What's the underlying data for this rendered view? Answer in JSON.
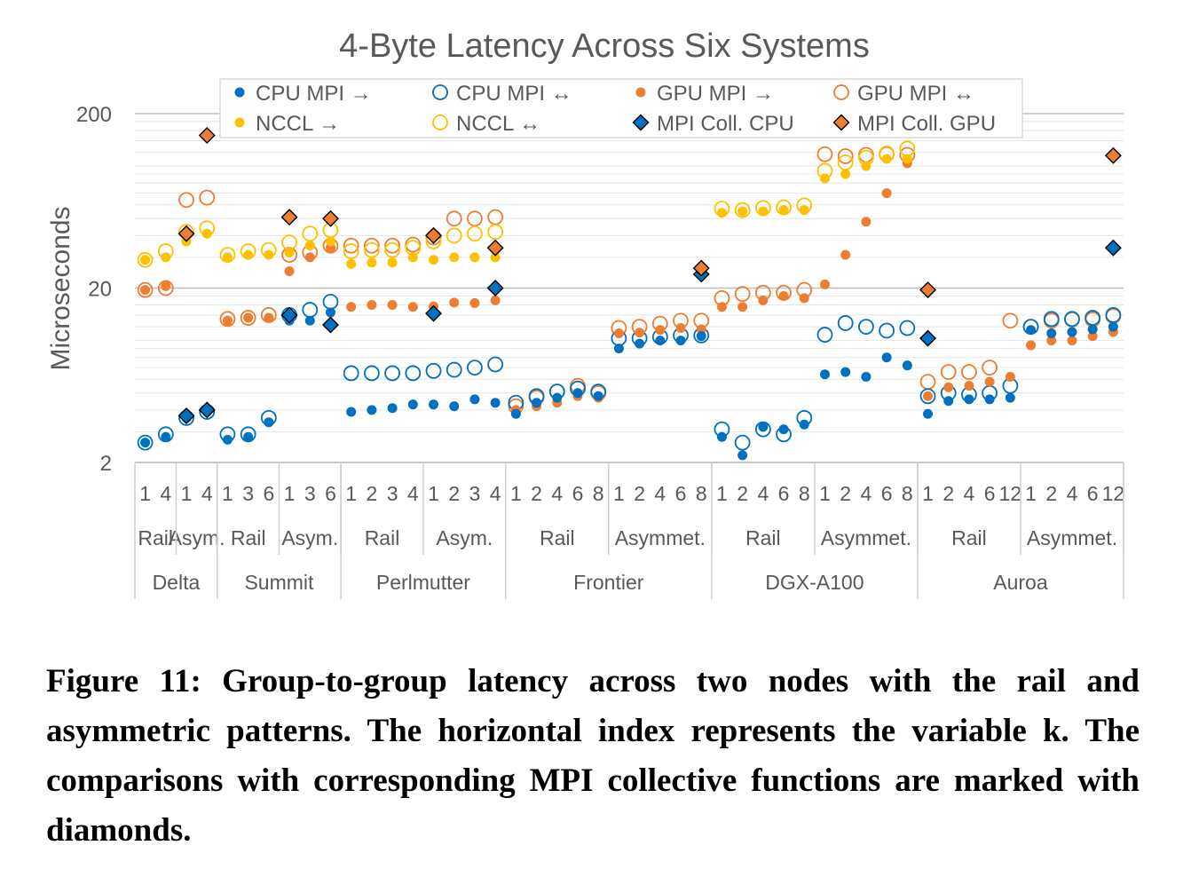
{
  "colors": {
    "cpu": "#0070C0",
    "gpu": "#ED7D31",
    "nccl": "#FFC000",
    "axis_text": "#595959",
    "grid": "#D9D9D9",
    "diamond_cpu": "#0070C0",
    "diamond_gpu": "#ED7D31"
  },
  "chart_data": {
    "type": "scatter",
    "title": "4-Byte Latency Across Six Systems",
    "xlabel": "",
    "ylabel": "Microseconds",
    "y_scale": "log",
    "ylim": [
      2,
      200
    ],
    "yticks": [
      "2",
      "20",
      "200"
    ],
    "grid": true,
    "legend_position": "top",
    "legend": [
      {
        "label": "CPU MPI →",
        "marker": "filled-circle",
        "color": "#0070C0"
      },
      {
        "label": "CPU MPI ↔",
        "marker": "open-circle",
        "color": "#0070C0"
      },
      {
        "label": "GPU MPI →",
        "marker": "filled-circle",
        "color": "#ED7D31"
      },
      {
        "label": "GPU MPI ↔",
        "marker": "open-circle",
        "color": "#ED7D31"
      },
      {
        "label": "NCCL →",
        "marker": "filled-circle",
        "color": "#FFC000"
      },
      {
        "label": "NCCL ↔",
        "marker": "open-circle",
        "color": "#FFC000"
      },
      {
        "label": "MPI Coll. CPU",
        "marker": "diamond",
        "color": "#0070C0"
      },
      {
        "label": "MPI Coll. GPU",
        "marker": "diamond",
        "color": "#ED7D31"
      }
    ],
    "systems": [
      {
        "name": "Delta",
        "groups": [
          {
            "name": "Rail",
            "k": [
              "1",
              "4"
            ]
          },
          {
            "name": "Asym.",
            "k": [
              "1",
              "4"
            ]
          }
        ]
      },
      {
        "name": "Summit",
        "groups": [
          {
            "name": "Rail",
            "k": [
              "1",
              "3",
              "6"
            ]
          },
          {
            "name": "Asym.",
            "k": [
              "1",
              "3",
              "6"
            ]
          }
        ]
      },
      {
        "name": "Perlmutter",
        "groups": [
          {
            "name": "Rail",
            "k": [
              "1",
              "2",
              "3",
              "4"
            ]
          },
          {
            "name": "Asym.",
            "k": [
              "1",
              "2",
              "3",
              "4"
            ]
          }
        ]
      },
      {
        "name": "Frontier",
        "groups": [
          {
            "name": "Rail",
            "k": [
              "1",
              "2",
              "4",
              "6",
              "8"
            ]
          },
          {
            "name": "Asymmet.",
            "k": [
              "1",
              "2",
              "4",
              "6",
              "8"
            ]
          }
        ]
      },
      {
        "name": "DGX-A100",
        "groups": [
          {
            "name": "Rail",
            "k": [
              "1",
              "2",
              "4",
              "6",
              "8"
            ]
          },
          {
            "name": "Asymmet.",
            "k": [
              "1",
              "2",
              "4",
              "6",
              "8"
            ]
          }
        ]
      },
      {
        "name": "Auroa",
        "groups": [
          {
            "name": "Rail",
            "k": [
              "1",
              "2",
              "4",
              "6",
              "12"
            ]
          },
          {
            "name": "Asymmet.",
            "k": [
              "1",
              "2",
              "4",
              "6",
              "12"
            ]
          }
        ]
      }
    ],
    "series": [
      {
        "name": "CPU MPI →",
        "values": [
          2.6,
          2.8,
          3.6,
          3.9,
          2.7,
          2.8,
          3.4,
          13.0,
          13.0,
          14.5,
          3.9,
          4.0,
          4.1,
          4.3,
          4.3,
          4.2,
          4.6,
          4.4,
          3.8,
          4.4,
          4.7,
          5.0,
          4.8,
          9.0,
          9.6,
          10.0,
          10.0,
          10.6,
          2.8,
          2.2,
          3.2,
          3.1,
          3.3,
          6.4,
          6.6,
          6.2,
          8.0,
          7.2,
          3.8,
          4.5,
          4.6,
          4.6,
          4.7,
          11.5,
          11.0,
          11.2,
          11.6,
          12.0
        ]
      },
      {
        "name": "CPU MPI ↔",
        "values": [
          2.6,
          2.9,
          3.6,
          3.9,
          2.9,
          2.9,
          3.6,
          14.0,
          15.0,
          16.7,
          6.5,
          6.5,
          6.5,
          6.5,
          6.7,
          6.8,
          7.0,
          7.3,
          4.4,
          4.8,
          5.1,
          5.3,
          5.1,
          10.3,
          10.3,
          10.5,
          10.7,
          10.7,
          3.1,
          2.6,
          3.1,
          2.9,
          3.6,
          10.8,
          12.6,
          12.0,
          11.4,
          11.8,
          4.8,
          5.0,
          4.9,
          5.0,
          5.5,
          12.0,
          13.3,
          13.3,
          13.5,
          14.0
        ]
      },
      {
        "name": "GPU MPI →",
        "values": [
          19.5,
          20.5,
          null,
          null,
          13.0,
          13.5,
          13.5,
          25.0,
          30.0,
          34.0,
          15.6,
          16.0,
          16.0,
          15.6,
          15.7,
          16.5,
          16.4,
          17.0,
          4.0,
          4.2,
          4.4,
          4.8,
          4.7,
          11.0,
          11.1,
          11.5,
          11.8,
          11.6,
          15.6,
          15.6,
          17.0,
          18.0,
          17.5,
          21.0,
          31.0,
          48.0,
          70.0,
          104.0,
          4.8,
          5.4,
          5.5,
          5.8,
          6.2,
          9.4,
          10.0,
          10.0,
          10.6,
          11.2
        ]
      },
      {
        "name": "GPU MPI ↔",
        "values": [
          19.5,
          20.0,
          64.0,
          66.0,
          13.3,
          13.5,
          14.0,
          31.0,
          32.0,
          35.0,
          35.0,
          35.0,
          35.0,
          35.5,
          39.0,
          50.0,
          50.0,
          51.0,
          4.2,
          4.7,
          5.1,
          5.5,
          5.0,
          11.8,
          12.0,
          12.5,
          13.0,
          13.0,
          17.5,
          18.5,
          18.8,
          18.8,
          19.5,
          117.0,
          114.0,
          116.0,
          117.0,
          116.0,
          5.8,
          6.6,
          6.6,
          7.0,
          13.0,
          12.0,
          13.0,
          13.2,
          13.2,
          13.8
        ]
      },
      {
        "name": "NCCL →",
        "values": [
          29.0,
          30.0,
          37.0,
          41.0,
          30.0,
          31.0,
          31.0,
          32.0,
          35.0,
          37.0,
          27.5,
          28.0,
          28.0,
          30.0,
          29.0,
          30.0,
          30.0,
          30.0,
          null,
          null,
          null,
          null,
          null,
          null,
          null,
          null,
          null,
          null,
          54.0,
          55.0,
          55.0,
          56.0,
          56.0,
          85.0,
          90.0,
          100.0,
          110.0,
          110.0,
          null,
          null,
          null,
          null,
          null,
          null,
          null,
          null,
          null,
          null
        ]
      },
      {
        "name": "NCCL ↔",
        "values": [
          29.0,
          32.5,
          42.0,
          44.0,
          31.0,
          32.5,
          33.0,
          36.5,
          41.0,
          43.0,
          32.5,
          33.0,
          33.0,
          34.0,
          37.0,
          40.0,
          41.0,
          42.0,
          null,
          null,
          null,
          null,
          null,
          null,
          null,
          null,
          null,
          null,
          57.0,
          56.0,
          57.5,
          58.0,
          59.5,
          94.0,
          105.0,
          112.0,
          118.0,
          126.0,
          null,
          null,
          null,
          null,
          null,
          null,
          null,
          null,
          null,
          null
        ]
      },
      {
        "name": "MPI Coll. CPU",
        "values": [
          null,
          null,
          3.7,
          4.0,
          null,
          null,
          null,
          14.0,
          null,
          12.3,
          null,
          null,
          null,
          null,
          14.3,
          null,
          null,
          20.0,
          null,
          null,
          null,
          null,
          null,
          null,
          null,
          null,
          null,
          24.0,
          null,
          null,
          null,
          null,
          null,
          null,
          null,
          null,
          null,
          null,
          10.3,
          null,
          null,
          null,
          null,
          null,
          null,
          null,
          null,
          34.0
        ]
      },
      {
        "name": "MPI Coll. GPU",
        "values": [
          null,
          null,
          41.0,
          150.0,
          null,
          null,
          null,
          51.0,
          null,
          50.0,
          null,
          null,
          null,
          null,
          40.0,
          null,
          null,
          34.0,
          null,
          null,
          null,
          null,
          null,
          null,
          null,
          null,
          null,
          26.0,
          null,
          null,
          null,
          null,
          null,
          null,
          null,
          null,
          null,
          null,
          19.5,
          null,
          null,
          null,
          null,
          null,
          null,
          null,
          null,
          115.0
        ]
      }
    ]
  },
  "caption": "Figure 11: Group-to-group latency across two nodes with the rail and asymmetric patterns. The horizontal index represents the variable k. The comparisons with corresponding MPI collective functions are marked with diamonds."
}
